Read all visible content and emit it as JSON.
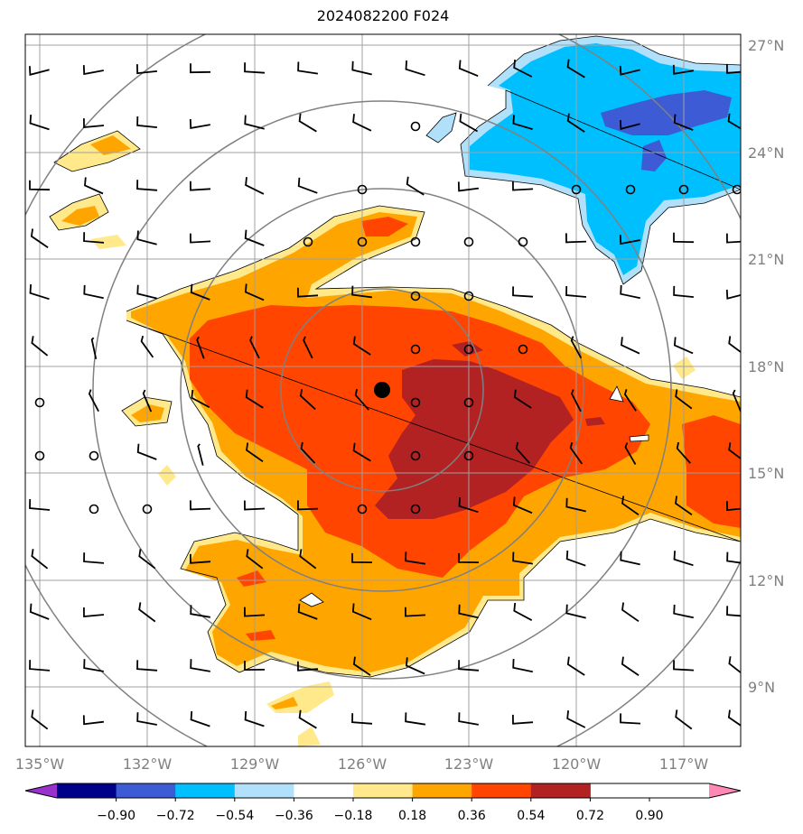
{
  "title": "2024082200 F024",
  "lon_labels": [
    "135°W",
    "132°W",
    "129°W",
    "126°W",
    "123°W",
    "120°W",
    "117°W"
  ],
  "lat_labels": [
    "27°N",
    "24°N",
    "21°N",
    "18°N",
    "15°N",
    "12°N",
    "9°N"
  ],
  "colorbar": {
    "labels": [
      "−0.90",
      "−0.72",
      "−0.54",
      "−0.36",
      "−0.18",
      "0.18",
      "0.36",
      "0.54",
      "0.72",
      "0.90"
    ],
    "colors": [
      "#9932cc",
      "#00008b",
      "#3d5bd4",
      "#00bfff",
      "#b0e0fa",
      "#ffffff",
      "#ffe98a",
      "#ffa500",
      "#ff4500",
      "#b22222",
      "#ff88b4"
    ]
  },
  "fill_colors": {
    "level_018": "#ffe98a",
    "level_036": "#ffa500",
    "level_054": "#ff4500",
    "level_072": "#b22222",
    "neg_018": "#b0e0fa",
    "neg_036": "#00bfff",
    "neg_054": "#3d5bd4"
  },
  "storm_center": {
    "lon": -125.9,
    "lat": 17.3
  }
}
